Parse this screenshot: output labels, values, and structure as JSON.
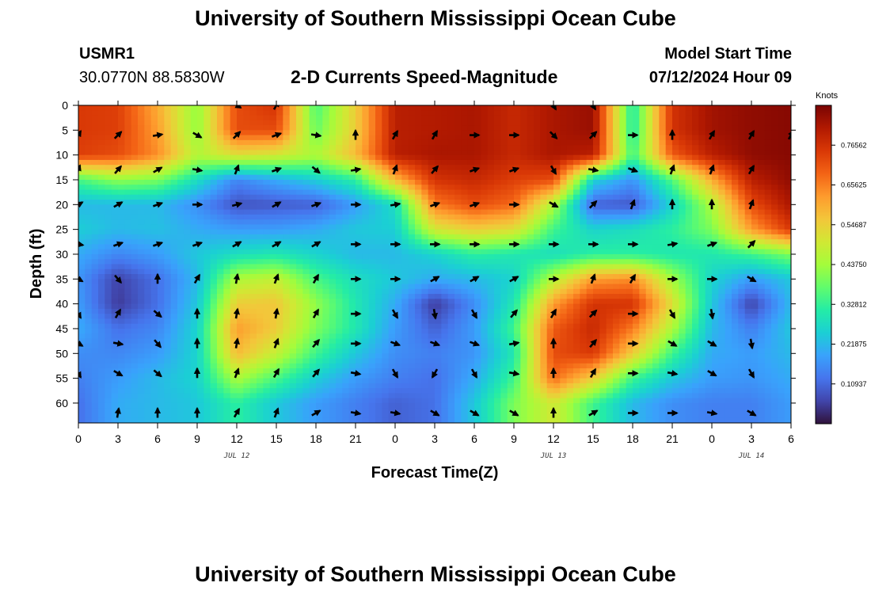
{
  "title": "University of Southern Mississippi Ocean Cube",
  "footer_title": "University of Southern Mississippi Ocean Cube",
  "station": {
    "name": "USMR1",
    "coords": "30.0770N  88.5830W"
  },
  "plot_title": "2-D Currents Speed-Magnitude",
  "model": {
    "label": "Model Start Time",
    "value": "07/12/2024 Hour 09"
  },
  "chart_data": {
    "type": "heatmap",
    "title": "2-D Currents Speed-Magnitude",
    "xlabel": "Forecast Time(Z)",
    "ylabel": "Depth (ft)",
    "x_tick_labels": [
      "0",
      "3",
      "6",
      "9",
      "12",
      "15",
      "18",
      "21",
      "0",
      "3",
      "6",
      "9",
      "12",
      "15",
      "18",
      "21",
      "0",
      "3",
      "6"
    ],
    "x_range_hours": [
      0,
      54
    ],
    "date_labels": [
      {
        "text": "JUL 12",
        "hour": 12
      },
      {
        "text": "JUL 13",
        "hour": 36
      },
      {
        "text": "JUL 14",
        "hour": 51
      }
    ],
    "y_ticks": [
      0,
      5,
      10,
      15,
      20,
      25,
      30,
      35,
      40,
      45,
      50,
      55,
      60
    ],
    "y_range_ft": [
      0,
      64
    ],
    "colorbar": {
      "unit": "Knots",
      "range": [
        0.0,
        0.875
      ],
      "tick_values": [
        0.76562,
        0.65625,
        0.54687,
        0.4375,
        0.32812,
        0.21875,
        0.10937
      ],
      "tick_labels": [
        "0.76562",
        "0.65625",
        "0.54687",
        "0.43750",
        "0.32812",
        "0.21875",
        "0.10937"
      ],
      "colors": [
        "#30123b",
        "#4145ab",
        "#4675ed",
        "#39a2fc",
        "#1bcfd4",
        "#24eca6",
        "#61fc6c",
        "#a4fc3b",
        "#d1e834",
        "#f3c63a",
        "#fe9b2d",
        "#f36315",
        "#d93806",
        "#b11901",
        "#7a0403"
      ]
    },
    "speed_grid": {
      "x_hours": [
        0,
        3,
        6,
        9,
        12,
        15,
        18,
        21,
        24,
        27,
        30,
        33,
        36,
        39,
        42,
        45,
        48,
        51,
        54
      ],
      "depth_ft": [
        0,
        5,
        10,
        15,
        20,
        25,
        30,
        35,
        40,
        45,
        50,
        55,
        60,
        64
      ],
      "values_knots": [
        [
          0.75,
          0.74,
          0.6,
          0.42,
          0.72,
          0.76,
          0.35,
          0.55,
          0.8,
          0.81,
          0.82,
          0.78,
          0.82,
          0.84,
          0.3,
          0.76,
          0.83,
          0.85,
          0.86
        ],
        [
          0.75,
          0.74,
          0.62,
          0.42,
          0.72,
          0.72,
          0.38,
          0.55,
          0.8,
          0.81,
          0.82,
          0.78,
          0.82,
          0.84,
          0.3,
          0.76,
          0.83,
          0.85,
          0.86
        ],
        [
          0.74,
          0.72,
          0.64,
          0.46,
          0.52,
          0.5,
          0.45,
          0.58,
          0.8,
          0.82,
          0.82,
          0.78,
          0.82,
          0.8,
          0.34,
          0.7,
          0.8,
          0.85,
          0.86
        ],
        [
          0.35,
          0.42,
          0.4,
          0.28,
          0.15,
          0.2,
          0.25,
          0.32,
          0.58,
          0.76,
          0.78,
          0.74,
          0.72,
          0.26,
          0.17,
          0.36,
          0.6,
          0.8,
          0.85
        ],
        [
          0.22,
          0.22,
          0.22,
          0.16,
          0.08,
          0.09,
          0.1,
          0.18,
          0.28,
          0.66,
          0.72,
          0.68,
          0.45,
          0.1,
          0.09,
          0.26,
          0.45,
          0.72,
          0.82
        ],
        [
          0.25,
          0.22,
          0.23,
          0.2,
          0.18,
          0.18,
          0.2,
          0.24,
          0.25,
          0.5,
          0.55,
          0.52,
          0.34,
          0.26,
          0.28,
          0.32,
          0.4,
          0.62,
          0.75
        ],
        [
          0.2,
          0.15,
          0.18,
          0.24,
          0.28,
          0.3,
          0.26,
          0.22,
          0.22,
          0.26,
          0.32,
          0.3,
          0.28,
          0.32,
          0.32,
          0.3,
          0.3,
          0.34,
          0.4
        ],
        [
          0.17,
          0.06,
          0.12,
          0.22,
          0.45,
          0.48,
          0.35,
          0.28,
          0.24,
          0.2,
          0.22,
          0.26,
          0.46,
          0.62,
          0.64,
          0.44,
          0.26,
          0.18,
          0.24
        ],
        [
          0.18,
          0.05,
          0.12,
          0.24,
          0.55,
          0.56,
          0.42,
          0.3,
          0.2,
          0.05,
          0.16,
          0.3,
          0.62,
          0.76,
          0.76,
          0.52,
          0.24,
          0.06,
          0.22
        ],
        [
          0.2,
          0.12,
          0.15,
          0.26,
          0.62,
          0.55,
          0.4,
          0.3,
          0.18,
          0.1,
          0.18,
          0.34,
          0.7,
          0.78,
          0.66,
          0.45,
          0.22,
          0.14,
          0.24
        ],
        [
          0.16,
          0.15,
          0.18,
          0.26,
          0.58,
          0.48,
          0.34,
          0.24,
          0.16,
          0.14,
          0.17,
          0.3,
          0.72,
          0.75,
          0.55,
          0.34,
          0.2,
          0.18,
          0.22
        ],
        [
          0.14,
          0.18,
          0.22,
          0.26,
          0.45,
          0.35,
          0.25,
          0.18,
          0.14,
          0.12,
          0.2,
          0.34,
          0.68,
          0.55,
          0.34,
          0.24,
          0.18,
          0.17,
          0.2
        ],
        [
          0.12,
          0.2,
          0.22,
          0.24,
          0.32,
          0.24,
          0.18,
          0.14,
          0.1,
          0.12,
          0.24,
          0.4,
          0.5,
          0.34,
          0.22,
          0.16,
          0.14,
          0.14,
          0.18
        ],
        [
          0.12,
          0.2,
          0.22,
          0.24,
          0.32,
          0.24,
          0.18,
          0.14,
          0.1,
          0.12,
          0.24,
          0.4,
          0.5,
          0.34,
          0.22,
          0.16,
          0.14,
          0.14,
          0.18
        ]
      ]
    },
    "current_direction_deg": {
      "x_hours": [
        0,
        3,
        6,
        9,
        12,
        15,
        18,
        21,
        24,
        27,
        30,
        33,
        36,
        39,
        42,
        45,
        48,
        51,
        54
      ],
      "depth_ft": [
        0,
        6,
        13,
        20,
        28,
        35,
        42,
        48,
        54,
        62
      ],
      "values": [
        [
          null,
          null,
          null,
          null,
          120,
          30,
          null,
          null,
          null,
          null,
          null,
          null,
          150,
          150,
          null,
          null,
          null,
          null,
          null
        ],
        [
          30,
          45,
          80,
          120,
          45,
          70,
          100,
          0,
          30,
          30,
          90,
          90,
          135,
          45,
          90,
          0,
          30,
          30,
          30
        ],
        [
          20,
          40,
          60,
          100,
          20,
          70,
          130,
          80,
          20,
          40,
          70,
          70,
          150,
          100,
          110,
          20,
          20,
          30,
          null
        ],
        [
          60,
          60,
          70,
          90,
          75,
          60,
          70,
          90,
          80,
          70,
          70,
          90,
          120,
          45,
          20,
          0,
          0,
          20,
          null
        ],
        [
          100,
          70,
          70,
          70,
          60,
          60,
          60,
          90,
          90,
          90,
          90,
          90,
          90,
          90,
          90,
          80,
          70,
          45,
          null
        ],
        [
          120,
          140,
          0,
          30,
          10,
          20,
          30,
          90,
          90,
          60,
          60,
          60,
          90,
          20,
          30,
          90,
          90,
          120,
          null
        ],
        [
          150,
          30,
          130,
          0,
          10,
          10,
          30,
          90,
          150,
          170,
          150,
          40,
          30,
          45,
          90,
          150,
          170,
          null,
          null
        ],
        [
          120,
          100,
          140,
          0,
          10,
          20,
          40,
          90,
          110,
          110,
          110,
          80,
          0,
          40,
          90,
          120,
          120,
          170,
          null
        ],
        [
          150,
          120,
          130,
          0,
          20,
          30,
          40,
          100,
          150,
          210,
          150,
          100,
          0,
          30,
          90,
          100,
          120,
          150,
          null
        ],
        [
          null,
          10,
          0,
          0,
          30,
          20,
          60,
          100,
          100,
          120,
          120,
          120,
          0,
          60,
          90,
          90,
          100,
          120,
          null
        ]
      ]
    }
  }
}
